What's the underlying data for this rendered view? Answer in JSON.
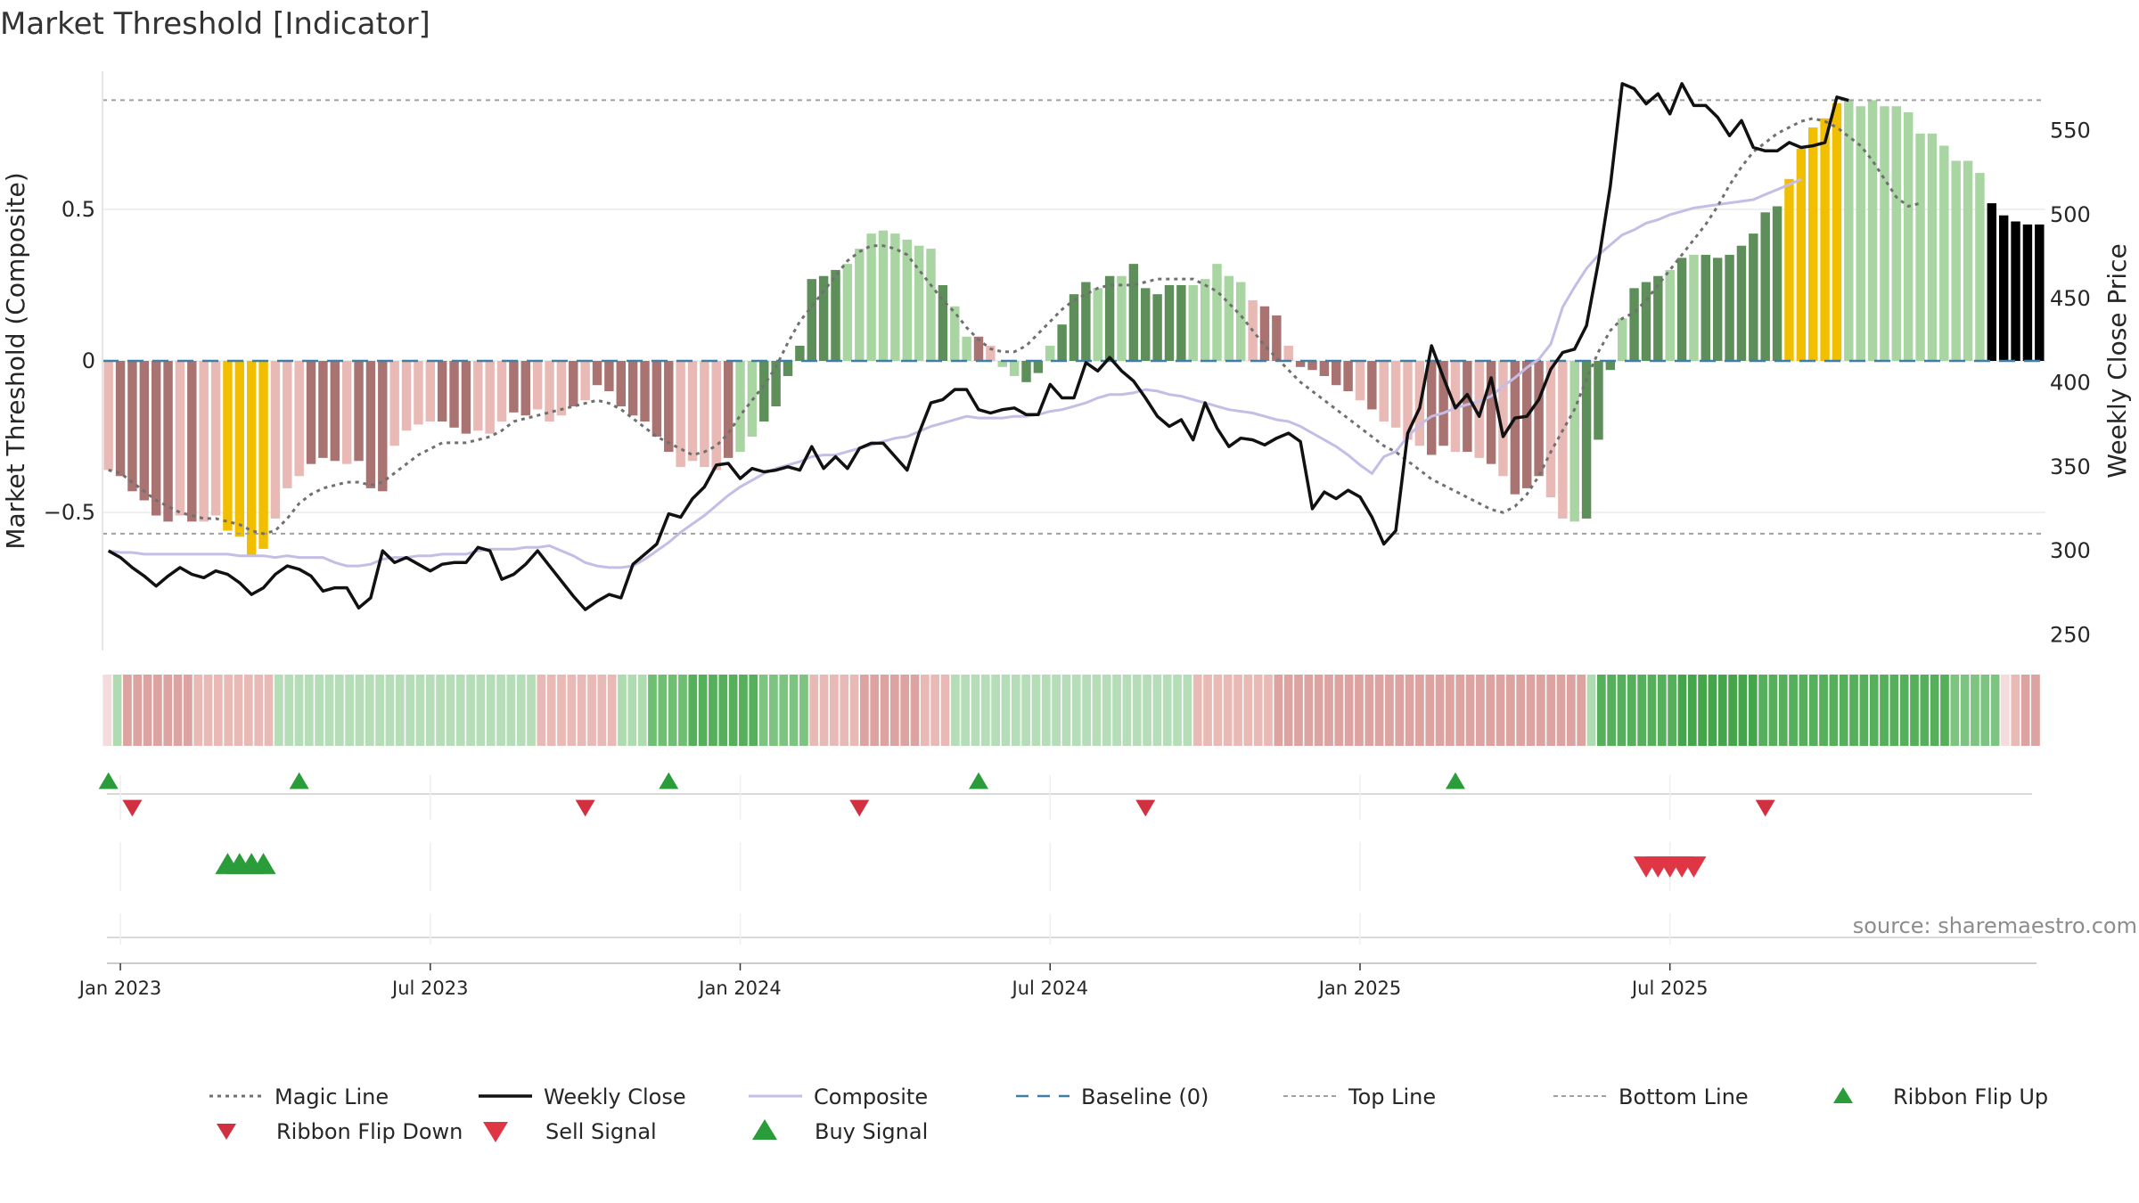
{
  "chart_data": {
    "type": "bar",
    "title": "Market Threshold [Indicator]",
    "ylabel_left": "Market Threshold (Composite)",
    "ylabel_right": "Weekly Close Price",
    "source": "source: sharemaestro.com",
    "x_tick_labels": [
      "Jan 2023",
      "Jul 2023",
      "Jan 2024",
      "Jul 2024",
      "Jan 2025",
      "Jul 2025"
    ],
    "x_tick_weeks": [
      1,
      27,
      53,
      79,
      105,
      131
    ],
    "left_y_ticks": [
      {
        "v": 0.5,
        "label": "0.5"
      },
      {
        "v": 0,
        "label": "0"
      },
      {
        "v": -0.5,
        "label": "−0.5"
      }
    ],
    "right_y_ticks": [
      250,
      300,
      350,
      400,
      450,
      500,
      550
    ],
    "left_ylim": [
      -0.97,
      0.97
    ],
    "right_ylim": [
      238,
      588
    ],
    "top_line": 0.86,
    "bottom_line": -0.57,
    "composite_values": [
      -0.36,
      -0.38,
      -0.43,
      -0.46,
      -0.51,
      -0.53,
      -0.51,
      -0.53,
      -0.53,
      -0.51,
      -0.56,
      -0.58,
      -0.64,
      -0.62,
      -0.52,
      -0.42,
      -0.38,
      -0.34,
      -0.32,
      -0.33,
      -0.34,
      -0.33,
      -0.42,
      -0.43,
      -0.28,
      -0.23,
      -0.21,
      -0.2,
      -0.2,
      -0.22,
      -0.24,
      -0.23,
      -0.24,
      -0.2,
      -0.17,
      -0.18,
      -0.16,
      -0.2,
      -0.18,
      -0.15,
      -0.13,
      -0.08,
      -0.1,
      -0.15,
      -0.18,
      -0.2,
      -0.25,
      -0.3,
      -0.35,
      -0.33,
      -0.35,
      -0.36,
      -0.32,
      -0.3,
      -0.25,
      -0.2,
      -0.15,
      -0.05,
      0.05,
      0.27,
      0.28,
      0.3,
      0.32,
      0.37,
      0.42,
      0.43,
      0.42,
      0.4,
      0.38,
      0.37,
      0.25,
      0.18,
      0.08,
      0.08,
      0.05,
      -0.02,
      -0.05,
      -0.07,
      -0.04,
      0.05,
      0.12,
      0.22,
      0.26,
      0.24,
      0.28,
      0.28,
      0.32,
      0.24,
      0.22,
      0.25,
      0.25,
      0.25,
      0.27,
      0.32,
      0.28,
      0.26,
      0.2,
      0.18,
      0.15,
      0.05,
      -0.02,
      -0.03,
      -0.05,
      -0.08,
      -0.1,
      -0.13,
      -0.16,
      -0.2,
      -0.22,
      -0.26,
      -0.28,
      -0.31,
      -0.28,
      -0.3,
      -0.3,
      -0.32,
      -0.34,
      -0.38,
      -0.44,
      -0.42,
      -0.38,
      -0.45,
      -0.52,
      -0.53,
      -0.52,
      -0.26,
      -0.03,
      0.14,
      0.24,
      0.26,
      0.28,
      0.3,
      0.34,
      0.35,
      0.35,
      0.34,
      0.35,
      0.38,
      0.42,
      0.49,
      0.51,
      0.6,
      0.7,
      0.77,
      0.8,
      0.85,
      0.86,
      0.84,
      0.86,
      0.84,
      0.84,
      0.82,
      0.75,
      0.75,
      0.71,
      0.66,
      0.66,
      0.62,
      0.52,
      0.48,
      0.46,
      0.45,
      0.45
    ],
    "composite_colors": [
      "#e8b9b5",
      "#a87371",
      "#a87371",
      "#a87371",
      "#a87371",
      "#a87371",
      "#e8b9b5",
      "#a87371",
      "#e8b9b5",
      "#e8b9b5",
      "#f2bf00",
      "#f2bf00",
      "#f2bf00",
      "#f2bf00",
      "#e8b9b5",
      "#e8b9b5",
      "#e8b9b5",
      "#a87371",
      "#a87371",
      "#a87371",
      "#e8b9b5",
      "#a87371",
      "#a87371",
      "#a87371",
      "#e8b9b5",
      "#e8b9b5",
      "#e8b9b5",
      "#e8b9b5",
      "#a87371",
      "#a87371",
      "#a87371",
      "#e8b9b5",
      "#e8b9b5",
      "#e8b9b5",
      "#a87371",
      "#a87371",
      "#e8b9b5",
      "#e8b9b5",
      "#e8b9b5",
      "#a87371",
      "#e8b9b5",
      "#a87371",
      "#a87371",
      "#a87371",
      "#a87371",
      "#a87371",
      "#a87371",
      "#a87371",
      "#e8b9b5",
      "#e8b9b5",
      "#e8b9b5",
      "#e8b9b5",
      "#a87371",
      "#a8d5a2",
      "#a8d5a2",
      "#5e8f5a",
      "#5e8f5a",
      "#5e8f5a",
      "#5e8f5a",
      "#5e8f5a",
      "#5e8f5a",
      "#5e8f5a",
      "#a8d5a2",
      "#a8d5a2",
      "#a8d5a2",
      "#a8d5a2",
      "#a8d5a2",
      "#a8d5a2",
      "#a8d5a2",
      "#a8d5a2",
      "#5e8f5a",
      "#a8d5a2",
      "#a8d5a2",
      "#a87371",
      "#e8b9b5",
      "#a8d5a2",
      "#a8d5a2",
      "#5e8f5a",
      "#5e8f5a",
      "#a8d5a2",
      "#5e8f5a",
      "#5e8f5a",
      "#5e8f5a",
      "#a8d5a2",
      "#5e8f5a",
      "#a8d5a2",
      "#5e8f5a",
      "#5e8f5a",
      "#5e8f5a",
      "#5e8f5a",
      "#5e8f5a",
      "#a8d5a2",
      "#a8d5a2",
      "#a8d5a2",
      "#a8d5a2",
      "#a8d5a2",
      "#e8b9b5",
      "#a87371",
      "#a87371",
      "#e8b9b5",
      "#a87371",
      "#a87371",
      "#a87371",
      "#a87371",
      "#a87371",
      "#e8b9b5",
      "#a87371",
      "#e8b9b5",
      "#e8b9b5",
      "#e8b9b5",
      "#e8b9b5",
      "#a87371",
      "#a87371",
      "#e8b9b5",
      "#a87371",
      "#e8b9b5",
      "#a87371",
      "#e8b9b5",
      "#a87371",
      "#a87371",
      "#a87371",
      "#e8b9b5",
      "#e8b9b5",
      "#a8d5a2",
      "#5e8f5a",
      "#5e8f5a",
      "#5e8f5a",
      "#a8d5a2",
      "#5e8f5a",
      "#5e8f5a",
      "#5e8f5a",
      "#a8d5a2",
      "#5e8f5a",
      "#a8d5a2",
      "#5e8f5a",
      "#5e8f5a",
      "#5e8f5a",
      "#5e8f5a",
      "#5e8f5a",
      "#5e8f5a",
      "#5e8f5a",
      "#f2bf00",
      "#f2bf00",
      "#f2bf00",
      "#f2bf00",
      "#f2bf00",
      "#a8d5a2",
      "#a8d5a2",
      "#a8d5a2",
      "#a8d5a2",
      "#a8d5a2",
      "#a8d5a2",
      "#a8d5a2",
      "#a8d5a2",
      "#a8d5a2",
      "#a8d5a2",
      "#a8d5a2",
      "#a8d5a2"
    ],
    "weekly_close": [
      300,
      296,
      290,
      285,
      279,
      285,
      290,
      286,
      284,
      288,
      286,
      281,
      274,
      278,
      286,
      291,
      289,
      285,
      276,
      278,
      278,
      266,
      272,
      300,
      293,
      296,
      292,
      288,
      292,
      293,
      293,
      302,
      300,
      283,
      286,
      292,
      300,
      291,
      282,
      273,
      265,
      270,
      274,
      272,
      292,
      298,
      304,
      322,
      320,
      331,
      338,
      351,
      352,
      343,
      349,
      347,
      348,
      350,
      348,
      362,
      349,
      356,
      349,
      361,
      364,
      364,
      356,
      348,
      370,
      388,
      390,
      396,
      396,
      384,
      382,
      384,
      385,
      381,
      381,
      399,
      391,
      391,
      412,
      407,
      415,
      407,
      401,
      391,
      380,
      374,
      378,
      366,
      388,
      373,
      362,
      367,
      366,
      363,
      367,
      370,
      365,
      325,
      335,
      331,
      336,
      332,
      320,
      304,
      312,
      370,
      385,
      422,
      403,
      385,
      393,
      380,
      403,
      368,
      379,
      380,
      390,
      408,
      418,
      420,
      434,
      472,
      517,
      578,
      575,
      566,
      572,
      560,
      578,
      565,
      565,
      558,
      547,
      556,
      540,
      538,
      538,
      543,
      540,
      541,
      543,
      570,
      568
    ],
    "composite_line": [
      300,
      299,
      299,
      298,
      298,
      298,
      298,
      298,
      298,
      298,
      298,
      297,
      297,
      297,
      296,
      297,
      296,
      296,
      296,
      293,
      291,
      291,
      292,
      295,
      296,
      296,
      297,
      297,
      298,
      298,
      298,
      300,
      301,
      301,
      301,
      302,
      302,
      303,
      300,
      297,
      293,
      291,
      290,
      290,
      291,
      295,
      300,
      305,
      311,
      316,
      321,
      327,
      333,
      338,
      342,
      346,
      349,
      351,
      353,
      356,
      357,
      357,
      359,
      361,
      363,
      365,
      367,
      368,
      371,
      374,
      376,
      378,
      380,
      379,
      379,
      379,
      380,
      380,
      381,
      383,
      384,
      386,
      388,
      391,
      393,
      393,
      394,
      396,
      395,
      393,
      392,
      390,
      388,
      386,
      384,
      383,
      382,
      380,
      378,
      377,
      374,
      370,
      366,
      362,
      357,
      351,
      346,
      356,
      359,
      368,
      375,
      380,
      382,
      385,
      387,
      389,
      392,
      398,
      403,
      409,
      414,
      423,
      445,
      457,
      468,
      476,
      482,
      488,
      491,
      495,
      497,
      500,
      502,
      504,
      505,
      506,
      507,
      508,
      509,
      512,
      515,
      518,
      521
    ],
    "magic_line": [
      -0.36,
      -0.37,
      -0.4,
      -0.43,
      -0.46,
      -0.48,
      -0.5,
      -0.51,
      -0.52,
      -0.52,
      -0.53,
      -0.54,
      -0.56,
      -0.57,
      -0.56,
      -0.52,
      -0.47,
      -0.44,
      -0.42,
      -0.41,
      -0.4,
      -0.4,
      -0.41,
      -0.4,
      -0.37,
      -0.34,
      -0.31,
      -0.29,
      -0.27,
      -0.27,
      -0.27,
      -0.26,
      -0.25,
      -0.23,
      -0.2,
      -0.19,
      -0.18,
      -0.17,
      -0.16,
      -0.15,
      -0.14,
      -0.13,
      -0.14,
      -0.16,
      -0.19,
      -0.22,
      -0.25,
      -0.27,
      -0.29,
      -0.31,
      -0.3,
      -0.28,
      -0.24,
      -0.18,
      -0.13,
      -0.08,
      -0.02,
      0.06,
      0.13,
      0.18,
      0.23,
      0.28,
      0.33,
      0.36,
      0.38,
      0.38,
      0.37,
      0.35,
      0.3,
      0.25,
      0.2,
      0.16,
      0.11,
      0.07,
      0.04,
      0.03,
      0.03,
      0.05,
      0.09,
      0.13,
      0.17,
      0.2,
      0.22,
      0.24,
      0.25,
      0.25,
      0.25,
      0.26,
      0.27,
      0.27,
      0.27,
      0.27,
      0.25,
      0.23,
      0.19,
      0.15,
      0.1,
      0.05,
      0.01,
      -0.03,
      -0.07,
      -0.1,
      -0.13,
      -0.16,
      -0.19,
      -0.22,
      -0.25,
      -0.28,
      -0.3,
      -0.33,
      -0.36,
      -0.39,
      -0.41,
      -0.43,
      -0.45,
      -0.47,
      -0.49,
      -0.5,
      -0.48,
      -0.44,
      -0.38,
      -0.3,
      -0.23,
      -0.16,
      -0.06,
      0.03,
      0.1,
      0.14,
      0.16,
      0.2,
      0.25,
      0.3,
      0.35,
      0.4,
      0.45,
      0.51,
      0.58,
      0.64,
      0.69,
      0.72,
      0.75,
      0.77,
      0.79,
      0.8,
      0.79,
      0.77,
      0.74,
      0.71,
      0.66,
      0.6,
      0.54,
      0.51,
      0.52
    ],
    "ribbon_colors": [
      "#f3dcdb",
      "#aedcb0",
      "#dca3a1",
      "#dca3a1",
      "#dca3a1",
      "#dca3a1",
      "#dca3a1",
      "#dca3a1",
      "#dca3a1",
      "#e8b9b5",
      "#e8b9b5",
      "#e8b9b5",
      "#e8b9b5",
      "#e8b9b5",
      "#e8b9b5",
      "#e8b9b5",
      "#e8b9b5",
      "#b5ddb7",
      "#b5ddb7",
      "#b5ddb7",
      "#b5ddb7",
      "#b5ddb7",
      "#b5ddb7",
      "#b5ddb7",
      "#b5ddb7",
      "#b5ddb7",
      "#b5ddb7",
      "#b5ddb7",
      "#b5ddb7",
      "#b5ddb7",
      "#b5ddb7",
      "#b5ddb7",
      "#b5ddb7",
      "#b5ddb7",
      "#b5ddb7",
      "#b5ddb7",
      "#b5ddb7",
      "#b5ddb7",
      "#b5ddb7",
      "#b5ddb7",
      "#b5ddb7",
      "#b5ddb7",
      "#b5ddb7",
      "#e8b9b5",
      "#e8b9b5",
      "#e8b9b5",
      "#e8b9b5",
      "#e8b9b5",
      "#e8b9b5",
      "#e8b9b5",
      "#e8b9b5",
      "#aedcb0",
      "#aedcb0",
      "#aedcb0",
      "#6fbf73",
      "#6fbf73",
      "#6fbf73",
      "#6fbf73",
      "#56b05b",
      "#56b05b",
      "#56b05b",
      "#56b05b",
      "#56b05b",
      "#56b05b",
      "#56b05b",
      "#7cc480",
      "#7cc480",
      "#7cc480",
      "#7cc480",
      "#7cc480",
      "#e8b9b5",
      "#e8b9b5",
      "#e8b9b5",
      "#e8b9b5",
      "#e8b9b5",
      "#dca3a1",
      "#dca3a1",
      "#dca3a1",
      "#dca3a1",
      "#dca3a1",
      "#dca3a1",
      "#e8b9b5",
      "#e8b9b5",
      "#e8b9b5",
      "#b5ddb7",
      "#b5ddb7",
      "#b5ddb7",
      "#b5ddb7",
      "#b5ddb7",
      "#b5ddb7",
      "#b5ddb7",
      "#b5ddb7",
      "#b5ddb7",
      "#b5ddb7",
      "#b5ddb7",
      "#b5ddb7",
      "#b5ddb7",
      "#b5ddb7",
      "#b5ddb7",
      "#b5ddb7",
      "#b5ddb7",
      "#b5ddb7",
      "#b5ddb7",
      "#b5ddb7",
      "#b5ddb7",
      "#b5ddb7",
      "#b5ddb7",
      "#b5ddb7",
      "#e8b9b5",
      "#e8b9b5",
      "#e8b9b5",
      "#e8b9b5",
      "#e8b9b5",
      "#e8b9b5",
      "#e8b9b5",
      "#e8b9b5",
      "#dca3a1",
      "#dca3a1",
      "#dca3a1",
      "#dca3a1",
      "#dca3a1",
      "#dca3a1",
      "#dca3a1",
      "#dca3a1",
      "#dca3a1",
      "#dca3a1",
      "#dca3a1",
      "#dca3a1",
      "#dca3a1",
      "#dca3a1",
      "#dca3a1",
      "#dca3a1",
      "#dca3a1",
      "#dca3a1",
      "#dca3a1",
      "#dca3a1",
      "#dca3a1",
      "#dca3a1",
      "#dca3a1",
      "#dca3a1",
      "#dca3a1",
      "#dca3a1",
      "#dca3a1",
      "#dca3a1",
      "#dca3a1",
      "#dca3a1",
      "#dca3a1",
      "#aedcb0",
      "#56b05b",
      "#56b05b",
      "#56b05b",
      "#56b05b",
      "#56b05b",
      "#56b05b",
      "#56b05b",
      "#56b05b",
      "#45a54a",
      "#45a54a",
      "#45a54a",
      "#45a54a",
      "#45a54a",
      "#45a54a",
      "#45a54a",
      "#45a54a",
      "#56b05b",
      "#56b05b",
      "#56b05b",
      "#56b05b",
      "#56b05b",
      "#56b05b",
      "#56b05b",
      "#56b05b",
      "#56b05b",
      "#56b05b",
      "#56b05b",
      "#56b05b",
      "#56b05b",
      "#56b05b",
      "#56b05b",
      "#56b05b",
      "#56b05b",
      "#56b05b",
      "#56b05b",
      "#7cc480",
      "#7cc480",
      "#7cc480",
      "#7cc480",
      "#7cc480",
      "#f3dcdb",
      "#e8b9b5",
      "#dca3a1",
      "#dca3a1"
    ],
    "ribbon_flip_up_weeks": [
      0,
      16,
      47,
      73,
      113
    ],
    "ribbon_flip_down_weeks": [
      2,
      40,
      63,
      87,
      139
    ],
    "buy_signal_weeks": [
      10,
      11,
      12,
      13
    ],
    "sell_signal_weeks": [
      129,
      130,
      131,
      132,
      133
    ],
    "colors": {
      "magic_line": "#707070",
      "weekly_close": "#111111",
      "composite": "#c5bde6",
      "baseline": "#3f7fa6",
      "threshold_line": "#a0a0a0",
      "flip_up": "#2a9d3a",
      "flip_down": "#d03040",
      "buy": "#2a9d3a",
      "sell": "#e03545"
    },
    "legend": [
      {
        "label": "Magic Line",
        "style": "dotted-gray"
      },
      {
        "label": "Weekly Close",
        "style": "solid-black"
      },
      {
        "label": "Composite",
        "style": "solid-lavender"
      },
      {
        "label": "Baseline (0)",
        "style": "dashed-blue"
      },
      {
        "label": "Top Line",
        "style": "dotted-light"
      },
      {
        "label": "Bottom Line",
        "style": "dotted-light"
      },
      {
        "label": "Ribbon Flip Up",
        "style": "triangle-up-small"
      },
      {
        "label": "Ribbon Flip Down",
        "style": "triangle-down-small"
      },
      {
        "label": "Sell Signal",
        "style": "triangle-down-large"
      },
      {
        "label": "Buy Signal",
        "style": "triangle-up-large"
      }
    ]
  }
}
